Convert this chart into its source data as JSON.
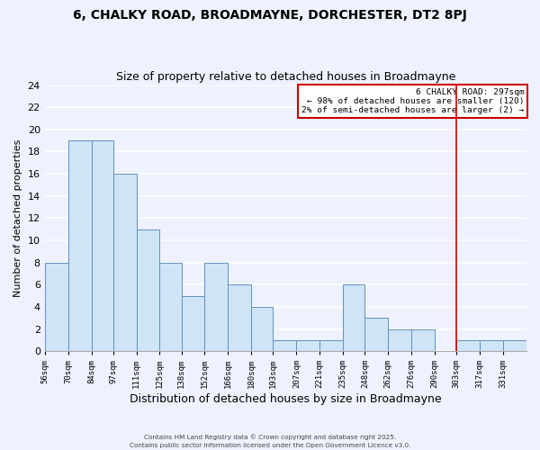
{
  "title": "6, CHALKY ROAD, BROADMAYNE, DORCHESTER, DT2 8PJ",
  "subtitle": "Size of property relative to detached houses in Broadmayne",
  "xlabel": "Distribution of detached houses by size in Broadmayne",
  "ylabel": "Number of detached properties",
  "bin_labels": [
    "56sqm",
    "70sqm",
    "84sqm",
    "97sqm",
    "111sqm",
    "125sqm",
    "138sqm",
    "152sqm",
    "166sqm",
    "180sqm",
    "193sqm",
    "207sqm",
    "221sqm",
    "235sqm",
    "248sqm",
    "262sqm",
    "276sqm",
    "290sqm",
    "303sqm",
    "317sqm",
    "331sqm"
  ],
  "bar_heights": [
    8,
    19,
    19,
    16,
    11,
    8,
    5,
    8,
    6,
    4,
    1,
    1,
    1,
    6,
    3,
    2,
    2,
    0,
    1,
    1,
    1
  ],
  "bar_color": "#d0e4f7",
  "bar_edge_color": "#6090c0",
  "ylim": [
    0,
    24
  ],
  "yticks": [
    0,
    2,
    4,
    6,
    8,
    10,
    12,
    14,
    16,
    18,
    20,
    22,
    24
  ],
  "vline_color": "#cc0000",
  "annotation_title": "6 CHALKY ROAD: 297sqm",
  "annotation_line1": "← 98% of detached houses are smaller (120)",
  "annotation_line2": "2% of semi-detached houses are larger (2) →",
  "annotation_box_color": "#cc0000",
  "footer_line1": "Contains HM Land Registry data © Crown copyright and database right 2025.",
  "footer_line2": "Contains public sector information licensed under the Open Government Licence v3.0.",
  "background_color": "#eef2ff",
  "grid_color": "#ffffff",
  "bin_edges": [
    49,
    63,
    77,
    90,
    104,
    118,
    131,
    145,
    159,
    173,
    186,
    200,
    214,
    228,
    241,
    255,
    269,
    283,
    296,
    310,
    324,
    338
  ],
  "vline_x_bin": 18,
  "title_fontsize": 10,
  "subtitle_fontsize": 9,
  "tick_fontsize": 6.5,
  "ylabel_fontsize": 8,
  "xlabel_fontsize": 9
}
